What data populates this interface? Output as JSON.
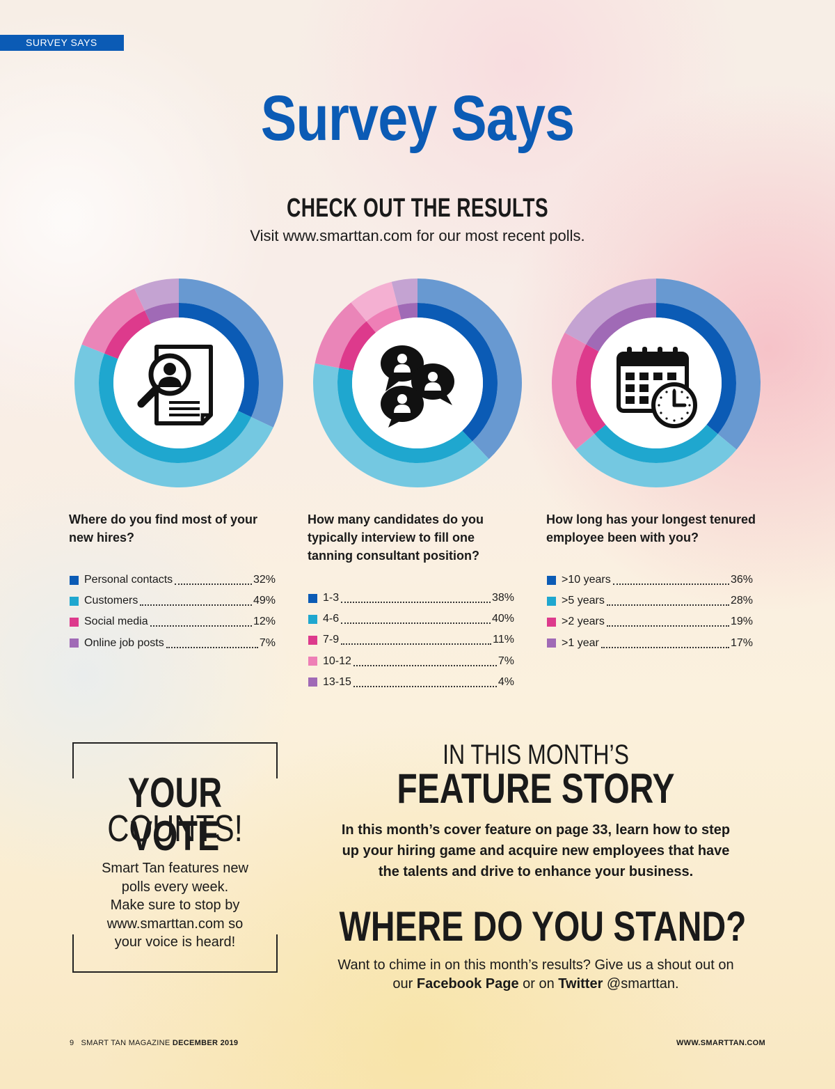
{
  "header": {
    "section_tab": "SURVEY SAYS",
    "title": "Survey Says",
    "subtitle": "CHECK OUT THE RESULTS",
    "visit_text": "Visit www.smarttan.com for our most recent polls."
  },
  "colors": {
    "brand_blue": "#0b5bb5",
    "series": [
      "#0b5bb5",
      "#1fa7cf",
      "#dd3a8c",
      "#a06ab6"
    ],
    "series_5": [
      "#0b5bb5",
      "#1fa7cf",
      "#dd3a8c",
      "#ee7fb6",
      "#a06ab6"
    ]
  },
  "chart_data": [
    {
      "type": "pie",
      "icon": "person-search-document-icon",
      "title": "Where do you find most of your new hires?",
      "categories": [
        "Personal contacts",
        "Customers",
        "Social media",
        "Online job posts"
      ],
      "values": [
        32,
        49,
        12,
        7
      ],
      "labels": [
        "32%",
        "49%",
        "12%",
        "7%"
      ]
    },
    {
      "type": "pie",
      "icon": "chat-bubbles-people-icon",
      "title": "How many candidates do you typically interview to fill one tanning consultant position?",
      "categories": [
        "1-3",
        "4-6",
        "7-9",
        "10-12",
        "13-15"
      ],
      "values": [
        38,
        40,
        11,
        7,
        4
      ],
      "labels": [
        "38%",
        "40%",
        "11%",
        "7%",
        "4%"
      ]
    },
    {
      "type": "pie",
      "icon": "calendar-clock-icon",
      "title": "How long has your longest tenured employee been with you?",
      "categories": [
        ">10 years",
        ">5 years",
        ">2 years",
        ">1 year"
      ],
      "values": [
        36,
        28,
        19,
        17
      ],
      "labels": [
        "36%",
        "28%",
        "19%",
        "17%"
      ]
    }
  ],
  "vote": {
    "title": "YOUR VOTE",
    "subtitle": "COUNTS!",
    "body_lines": [
      "Smart Tan features new",
      "polls every week.",
      "Make sure to stop by",
      "www.smarttan.com so",
      "your voice is heard!"
    ]
  },
  "feature": {
    "kicker": "IN THIS MONTH’S",
    "title": "FEATURE STORY",
    "body_lines": [
      "In this month’s cover feature on page 33, learn how to step",
      "up your hiring game and acquire new employees that have",
      "the talents and drive to enhance your business."
    ]
  },
  "stand": {
    "title": "WHERE DO YOU STAND?",
    "line1": "Want to chime in on this month’s results? Give us a shout out on",
    "line2_pre": "our ",
    "facebook": "Facebook Page",
    "line2_mid": " or on ",
    "twitter": "Twitter",
    "line2_post": " @smarttan."
  },
  "footer": {
    "page_number": "9",
    "magazine": "SMART TAN MAGAZINE",
    "issue": "DECEMBER 2019",
    "website": "WWW.SMARTTAN.COM"
  }
}
